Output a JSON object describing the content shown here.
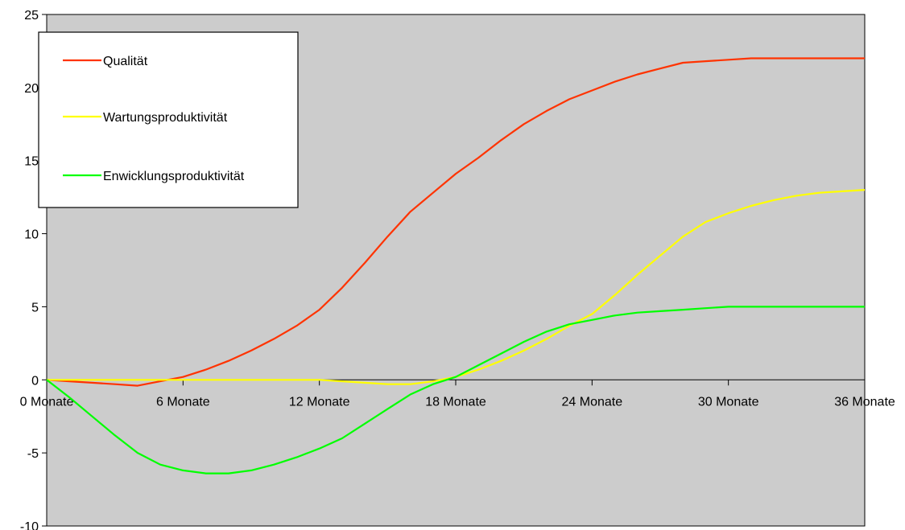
{
  "chart_data": {
    "type": "line",
    "x": [
      0,
      1,
      2,
      3,
      4,
      5,
      6,
      7,
      8,
      9,
      10,
      11,
      12,
      13,
      14,
      15,
      16,
      17,
      18,
      19,
      20,
      21,
      22,
      23,
      24,
      25,
      26,
      27,
      28,
      29,
      30,
      31,
      32,
      33,
      34,
      35,
      36
    ],
    "x_tick_values": [
      0,
      6,
      12,
      18,
      24,
      30,
      36
    ],
    "x_tick_labels": [
      "0 Monate",
      "6 Monate",
      "12 Monate",
      "18 Monate",
      "24 Monate",
      "30 Monate",
      "36 Monate"
    ],
    "xlim": [
      0,
      36
    ],
    "ylim": [
      -10,
      25
    ],
    "y_ticks": [
      -10,
      -5,
      0,
      5,
      10,
      15,
      20,
      25
    ],
    "grid": false,
    "legend_position": "top-left",
    "background": "#cccccc",
    "series": [
      {
        "name": "Qualität",
        "color": "#ff3300",
        "values": [
          0,
          -0.1,
          -0.2,
          -0.3,
          -0.4,
          -0.1,
          0.2,
          0.7,
          1.3,
          2.0,
          2.8,
          3.7,
          4.8,
          6.3,
          8.0,
          9.8,
          11.5,
          12.8,
          14.1,
          15.2,
          16.4,
          17.5,
          18.4,
          19.2,
          19.8,
          20.4,
          20.9,
          21.3,
          21.7,
          21.8,
          21.9,
          22.0,
          22.0,
          22.0,
          22.0,
          22.0,
          22.0
        ],
        "note_removed": true
      },
      {
        "name": "Wartungsproduktivität",
        "color": "#ffff00",
        "values": [
          0,
          0,
          0,
          0,
          0,
          0,
          0,
          0,
          0,
          0,
          0,
          0,
          0,
          -0.1,
          -0.2,
          -0.3,
          -0.3,
          -0.1,
          0.2,
          0.7,
          1.3,
          2.0,
          2.8,
          3.7,
          4.5,
          5.8,
          7.2,
          8.5,
          9.8,
          10.8,
          11.4,
          11.9,
          12.3,
          12.6,
          12.8,
          12.9,
          13.0
        ]
      },
      {
        "name": "Enwicklungsproduktivität",
        "color": "#00ff00",
        "values": [
          0,
          -1.2,
          -2.5,
          -3.8,
          -5.0,
          -5.8,
          -6.2,
          -6.4,
          -6.4,
          -6.2,
          -5.8,
          -5.3,
          -4.7,
          -4.0,
          -3.0,
          -2.0,
          -1.0,
          -0.3,
          0.2,
          1.0,
          1.8,
          2.6,
          3.3,
          3.8,
          4.1,
          4.4,
          4.6,
          4.7,
          4.8,
          4.9,
          5.0,
          5.0,
          5.0,
          5.0,
          5.0,
          5.0,
          5.0
        ]
      }
    ]
  }
}
